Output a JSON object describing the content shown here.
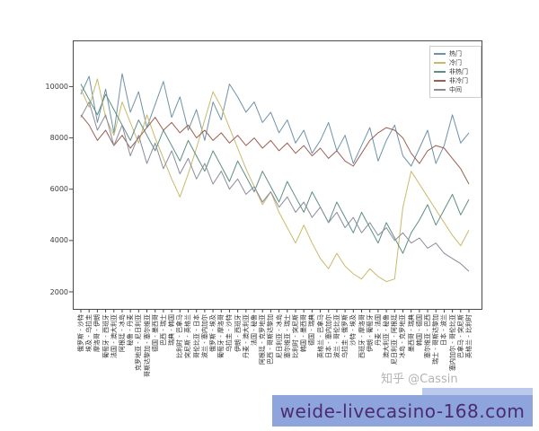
{
  "watermark": {
    "zhihu": "知乎 @Cassin"
  },
  "footer_banner": {
    "text": "weide-livecasino-168.com",
    "bg_color": "#8da4dd",
    "text_color": "#4b2c6e",
    "strip_color": "#bcc9ee"
  },
  "chart_data": {
    "type": "line",
    "title": "",
    "xlabel": "",
    "ylabel": "",
    "grid": false,
    "legend_position": "upper right",
    "yticks": [
      2000,
      4000,
      6000,
      8000,
      10000
    ],
    "ylim": [
      1300,
      11800
    ],
    "categories": [
      "俄罗斯 - 沙特",
      "埃及 - 乌拉圭",
      "摩洛哥 - 伊朗",
      "葡萄牙 - 西班牙",
      "法国 - 澳大利亚",
      "阿根廷 - 冰岛",
      "秘鲁 - 丹麦",
      "克罗地亚 - 尼日利亚",
      "哥斯达黎加 - 塞尔维亚",
      "德国 - 墨西哥",
      "巴西 - 瑞士",
      "瑞典 - 韩国",
      "比利时 - 巴拿马",
      "突尼斯 - 英格兰",
      "哥伦比亚 - 日本",
      "波兰 - 塞内加尔",
      "俄罗斯 - 埃及",
      "葡萄牙 - 摩洛哥",
      "乌拉圭 - 沙特",
      "伊朗 - 西班牙",
      "丹麦 - 澳大利亚",
      "法国 - 秘鲁",
      "阿根廷 - 克罗地亚",
      "巴西 - 哥斯达黎加",
      "尼日利亚 - 冰岛",
      "塞尔维亚 - 瑞士",
      "比利时 - 突尼斯",
      "韩国 - 墨西哥",
      "德国 - 瑞典",
      "英格兰 - 巴拿马",
      "日本 - 塞内加尔",
      "波兰 - 哥伦比亚",
      "乌拉圭 - 俄罗斯",
      "沙特 - 埃及",
      "西班牙 - 摩洛哥",
      "伊朗 - 葡萄牙",
      "丹麦 - 法国",
      "澳大利亚 - 秘鲁",
      "尼日利亚 - 阿根廷",
      "冰岛 - 克罗地亚",
      "墨西哥 - 瑞典",
      "韩国 - 德国",
      "塞尔维亚 - 巴西",
      "瑞士 - 哥斯达黎加",
      "日本 - 波兰",
      "塞内加尔 - 哥伦比亚",
      "巴拿马 - 突尼斯",
      "英格兰 - 比利时"
    ],
    "series": [
      {
        "name": "热门",
        "color": "#6e93a8",
        "values": [
          9700,
          10400,
          8600,
          9900,
          8200,
          10500,
          9000,
          9800,
          8400,
          9300,
          10200,
          8800,
          9600,
          8300,
          9100,
          7900,
          9400,
          8700,
          10100,
          9600,
          9000,
          9400,
          8600,
          9000,
          8200,
          8700,
          7800,
          8300,
          7400,
          7900,
          8600,
          7500,
          8100,
          7000,
          7700,
          8400,
          7100,
          7900,
          8500,
          7300,
          6900,
          7600,
          8300,
          7000,
          7700,
          8900,
          7800,
          8200
        ]
      },
      {
        "name": "冷门",
        "color": "#c9ba6b",
        "values": [
          9900,
          9200,
          10300,
          8800,
          8100,
          9400,
          8600,
          7800,
          8900,
          8000,
          7200,
          6400,
          5700,
          6600,
          7600,
          8700,
          9800,
          9200,
          8400,
          7600,
          6800,
          6100,
          5400,
          5900,
          5100,
          4500,
          3900,
          4600,
          3900,
          3300,
          2900,
          3500,
          3000,
          2700,
          2500,
          2900,
          2600,
          2400,
          2500,
          5300,
          6700,
          6200,
          5700,
          5200,
          4700,
          4200,
          3800,
          4400
        ]
      },
      {
        "name": "非热门",
        "color": "#5d8f82",
        "values": [
          10100,
          9500,
          8900,
          9700,
          9100,
          8500,
          7900,
          8700,
          8100,
          7500,
          8300,
          7700,
          7100,
          7900,
          7300,
          6700,
          7500,
          6900,
          6300,
          7100,
          6500,
          5900,
          6700,
          6100,
          5500,
          6300,
          5700,
          5100,
          5900,
          5300,
          4700,
          5500,
          4900,
          4300,
          5100,
          4500,
          3900,
          4700,
          4100,
          3500,
          4300,
          4800,
          5400,
          4600,
          5200,
          5800,
          5000,
          5600
        ]
      },
      {
        "name": "非冷门",
        "color": "#9a6055",
        "values": [
          8900,
          8500,
          7900,
          8300,
          7700,
          8100,
          7600,
          8000,
          8400,
          8800,
          8300,
          8600,
          8200,
          8500,
          8000,
          8300,
          7900,
          8200,
          7800,
          8100,
          7700,
          8000,
          7600,
          7900,
          7500,
          7800,
          7400,
          7700,
          7300,
          7600,
          7200,
          7500,
          7100,
          6900,
          7400,
          7900,
          8200,
          8400,
          8300,
          8000,
          7400,
          7000,
          7500,
          7700,
          7600,
          7200,
          6800,
          6200
        ]
      },
      {
        "name": "中间",
        "color": "#8b8b9e",
        "values": [
          8800,
          9400,
          8300,
          8900,
          7700,
          8500,
          7300,
          8100,
          7000,
          7800,
          6800,
          7500,
          6600,
          7200,
          6400,
          7000,
          6200,
          6700,
          6000,
          6400,
          5800,
          6100,
          5500,
          5900,
          5300,
          5700,
          5100,
          5500,
          4900,
          5300,
          4700,
          5100,
          4500,
          4900,
          4300,
          4700,
          4200,
          4500,
          4000,
          4300,
          3900,
          4100,
          3700,
          3900,
          3500,
          3300,
          3100,
          2800
        ]
      }
    ]
  }
}
